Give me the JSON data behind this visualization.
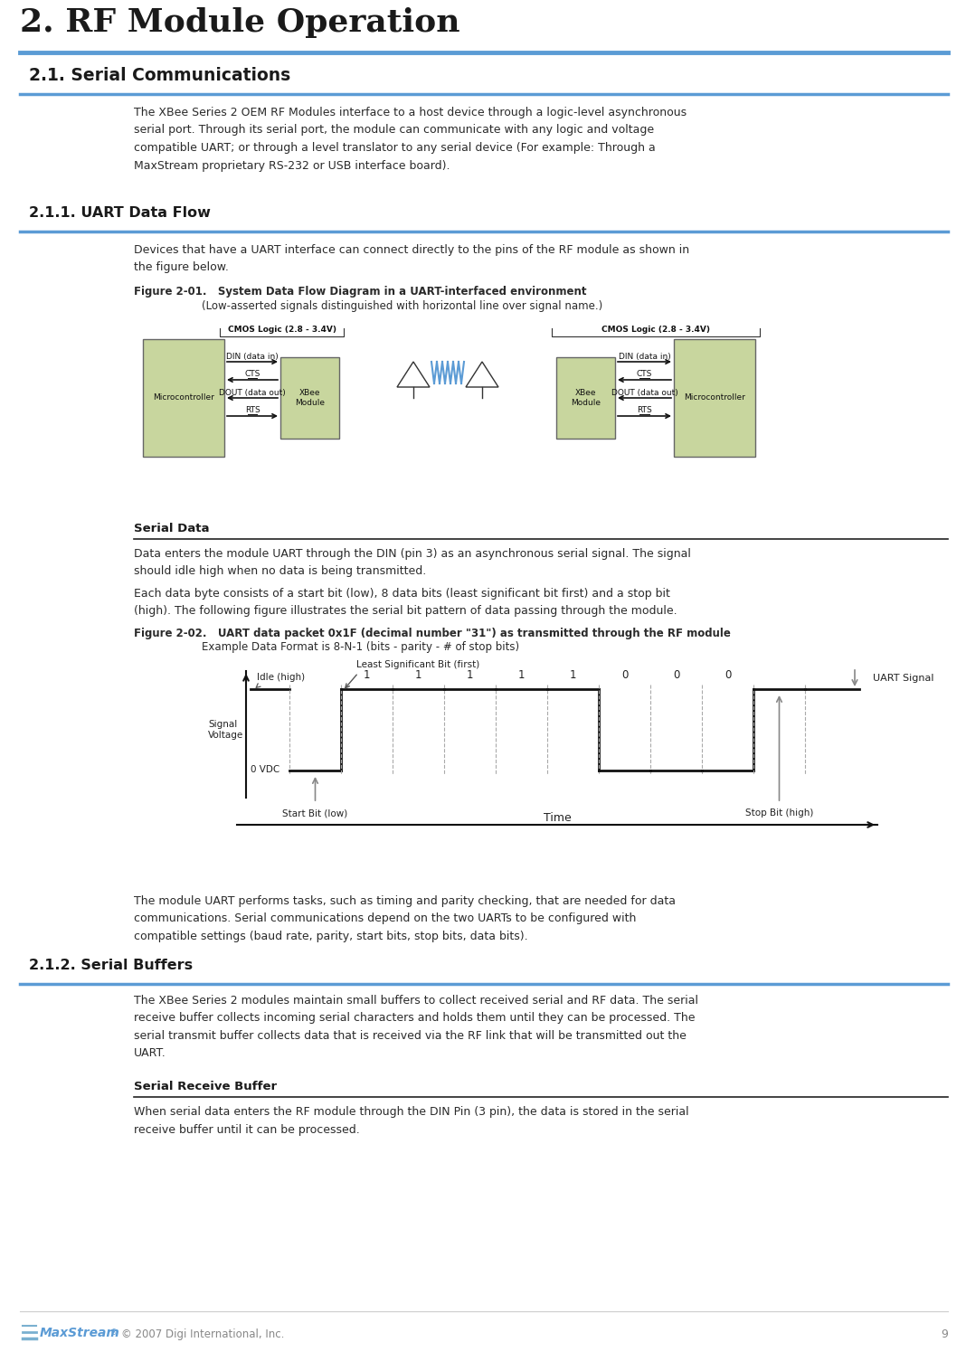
{
  "title": "2. RF Module Operation",
  "title_color": "#1a1a1a",
  "title_fontsize": 26,
  "header_line_color": "#5b9bd5",
  "bg_color": "#ffffff",
  "section_2_1_title": "2.1. Serial Communications",
  "section_2_1_1_title": "2.1.1. UART Data Flow",
  "section_2_1_2_title": "2.1.2. Serial Buffers",
  "serial_data_title": "Serial Data",
  "serial_buffer_title": "Serial Receive Buffer",
  "section_font_color": "#1a1a1a",
  "body_font_color": "#2a2a2a",
  "body_fontsize": 9.0,
  "section_fontsize": 13.5,
  "subsection_fontsize": 11.5,
  "para_2_1": "The XBee Series 2 OEM RF Modules interface to a host device through a logic-level asynchronous\nserial port. Through its serial port, the module can communicate with any logic and voltage\ncompatible UART; or through a level translator to any serial device (For example: Through a\nMaxStream proprietary RS-232 or USB interface board).",
  "para_uart": "Devices that have a UART interface can connect directly to the pins of the RF module as shown in\nthe figure below.",
  "fig_2_01_caption_bold": "Figure 2-01.   System Data Flow Diagram in a UART-interfaced environment",
  "fig_2_01_caption_normal": "(Low-asserted signals distinguished with horizontal line over signal name.)",
  "serial_data_para1": "Data enters the module UART through the DIN (pin 3) as an asynchronous serial signal. The signal\nshould idle high when no data is being transmitted.",
  "serial_data_para2": "Each data byte consists of a start bit (low), 8 data bits (least significant bit first) and a stop bit\n(high). The following figure illustrates the serial bit pattern of data passing through the module.",
  "fig_2_02_caption_bold": "Figure 2-02.   UART data packet 0x1F (decimal number \"31\") as transmitted through the RF module",
  "fig_2_02_caption_normal": "Example Data Format is 8-N-1 (bits - parity - # of stop bits)",
  "uart_para": "The module UART performs tasks, such as timing and parity checking, that are needed for data\ncommunications. Serial communications depend on the two UARTs to be configured with\ncompatible settings (baud rate, parity, start bits, stop bits, data bits).",
  "serial_buf_para": "The XBee Series 2 modules maintain small buffers to collect received serial and RF data. The serial\nreceive buffer collects incoming serial characters and holds them until they can be processed. The\nserial transmit buffer collects data that is received via the RF link that will be transmitted out the\nUART.",
  "serial_recv_para": "When serial data enters the RF module through the DIN Pin (3 pin), the data is stored in the serial\nreceive buffer until it can be processed.",
  "footer_text": "© 2007 Digi International, Inc.",
  "footer_page": "9",
  "footer_color": "#888888"
}
